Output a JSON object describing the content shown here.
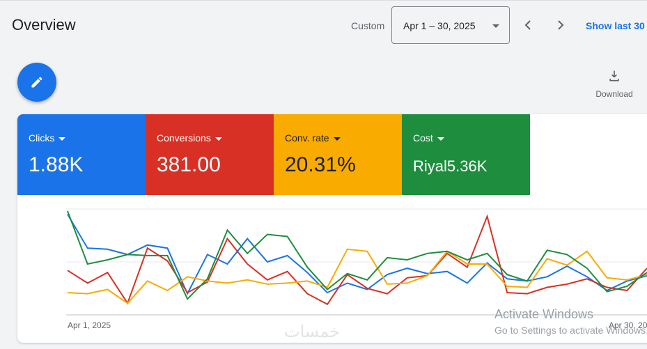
{
  "header": {
    "title": "Overview",
    "custom_label": "Custom",
    "date_range": "Apr 1 – 30, 2025",
    "show_last": "Show last 30"
  },
  "actions": {
    "edit_icon": "pencil-icon",
    "download_label": "Download"
  },
  "metrics": [
    {
      "name": "Clicks",
      "value": "1.88K",
      "color": "#1a73e8"
    },
    {
      "name": "Conversions",
      "value": "381.00",
      "color": "#d93025"
    },
    {
      "name": "Conv. rate",
      "value": "20.31%",
      "color": "#f9ab00"
    },
    {
      "name": "Cost",
      "value": "Riyal5.36K",
      "color": "#1e8e3e"
    }
  ],
  "chart_data": {
    "type": "line",
    "x_labels": [
      "Apr 1, 2025",
      "Apr 30, 20"
    ],
    "grid": true,
    "series": [
      {
        "color": "#1a73e8",
        "values": [
          95,
          63,
          62,
          57,
          66,
          63,
          20,
          57,
          48,
          72,
          50,
          56,
          40,
          21,
          30,
          24,
          38,
          44,
          39,
          41,
          30,
          49,
          34,
          32,
          36,
          46,
          36,
          23,
          32,
          37
        ]
      },
      {
        "color": "#d93025",
        "values": [
          42,
          30,
          40,
          11,
          63,
          51,
          21,
          31,
          72,
          48,
          33,
          41,
          20,
          10,
          38,
          25,
          20,
          35,
          37,
          58,
          45,
          93,
          21,
          20,
          26,
          29,
          34,
          26,
          23,
          44
        ]
      },
      {
        "color": "#f9ab00",
        "values": [
          21,
          20,
          24,
          11,
          32,
          23,
          36,
          32,
          30,
          33,
          29,
          30,
          32,
          26,
          62,
          60,
          29,
          30,
          37,
          60,
          48,
          48,
          27,
          26,
          53,
          47,
          60,
          35,
          33,
          38
        ]
      },
      {
        "color": "#1e8e3e",
        "values": [
          98,
          48,
          52,
          57,
          56,
          56,
          15,
          34,
          80,
          58,
          76,
          74,
          45,
          24,
          39,
          33,
          54,
          52,
          58,
          60,
          52,
          58,
          38,
          32,
          61,
          57,
          44,
          22,
          27,
          40
        ]
      }
    ]
  },
  "system_overlay": {
    "activate_title": "Activate Windows",
    "activate_sub": "Go to Settings to activate Windows.",
    "brand": "خمسات"
  }
}
